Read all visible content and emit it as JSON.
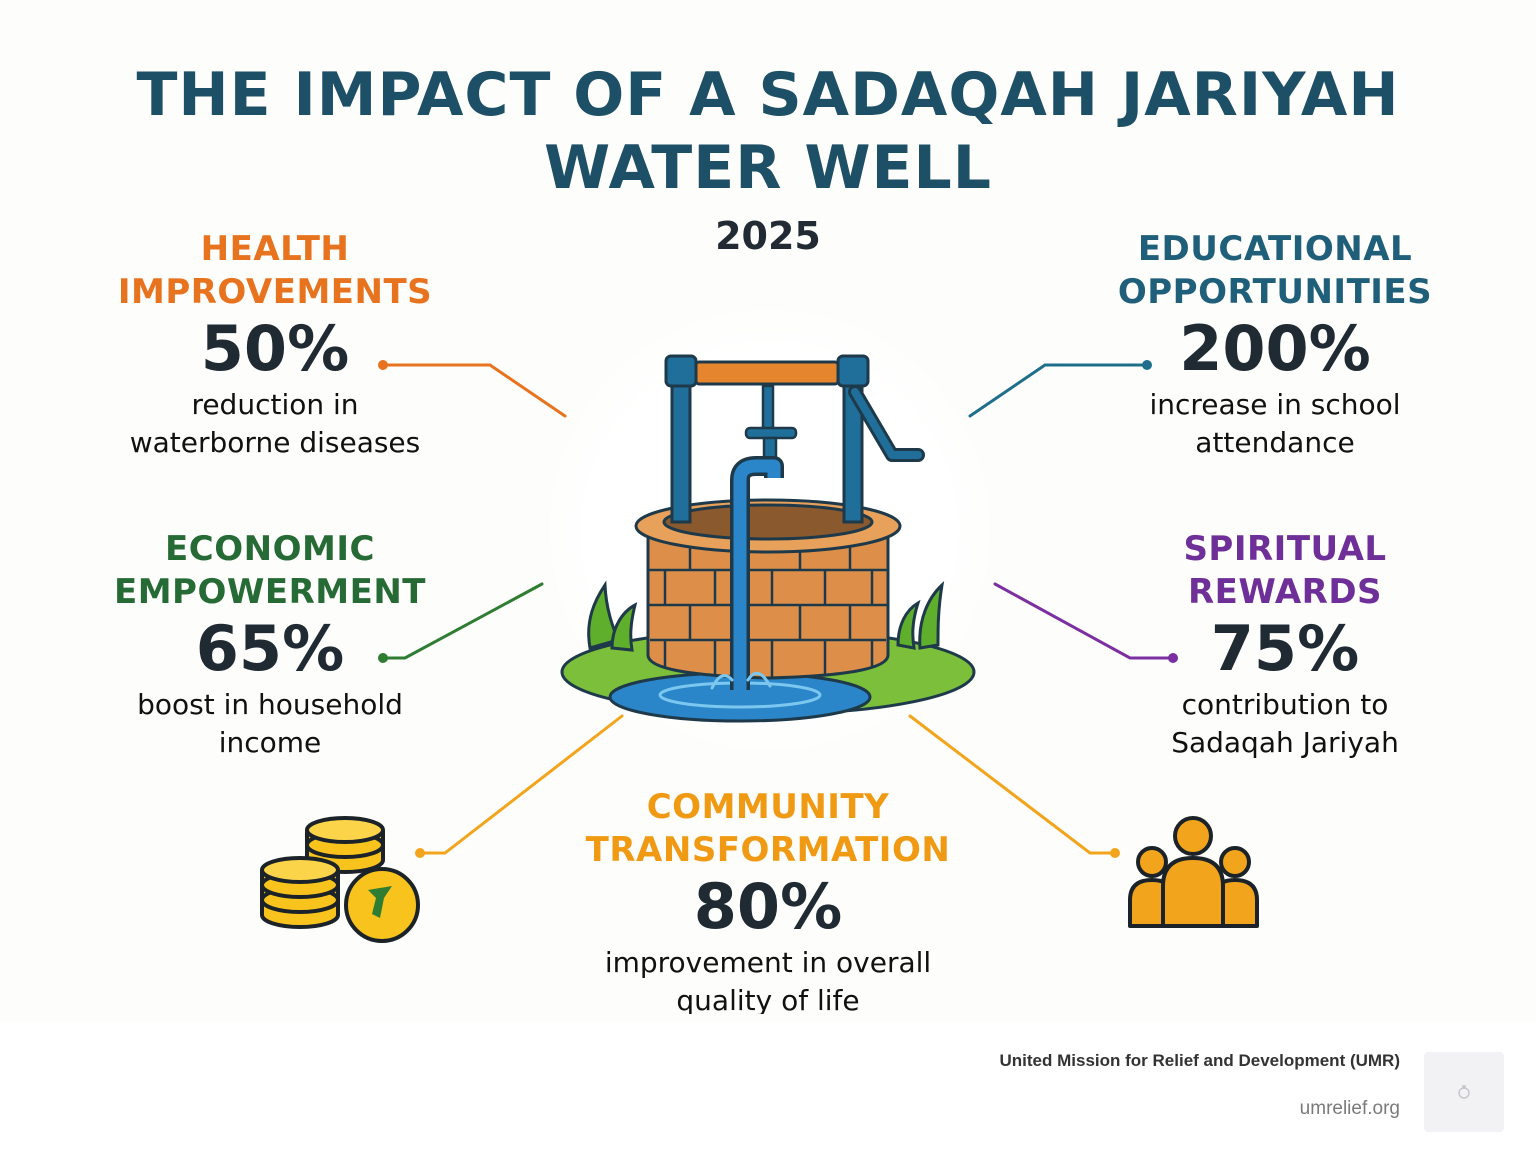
{
  "title": {
    "line1": "THE IMPACT OF A SADAQAH JARIYAH",
    "line2": "WATER WELL"
  },
  "year": "2025",
  "sections": {
    "health": {
      "heading": "HEALTH\nIMPROVEMENTS",
      "value": "50%",
      "description": "reduction in\nwaterborne diseases",
      "color": "#e8731f"
    },
    "education": {
      "heading": "EDUCATIONAL\nOPPORTUNITIES",
      "value": "200%",
      "description": "increase in school\nattendance",
      "color": "#1f5f7a"
    },
    "economic": {
      "heading": "ECONOMIC\nEMPOWERMENT",
      "value": "65%",
      "description": "boost in household\nincome",
      "color": "#266b35"
    },
    "spiritual": {
      "heading": "SPIRITUAL\nREWARDS",
      "value": "75%",
      "description": "contribution to\nSadaqah Jariyah",
      "color": "#6f2f98"
    },
    "community": {
      "heading": "COMMUNITY\nTRANSFORMATION",
      "value": "80%",
      "description": "improvement in overall\nquality of life",
      "color": "#f09a14"
    }
  },
  "icons": {
    "center": "water-well-icon",
    "bottom_left": "coin-stack-icon",
    "bottom_right": "people-group-icon"
  },
  "footer": {
    "organization": "United Mission for Relief and Development (UMR)",
    "url": "umrelief.org"
  }
}
